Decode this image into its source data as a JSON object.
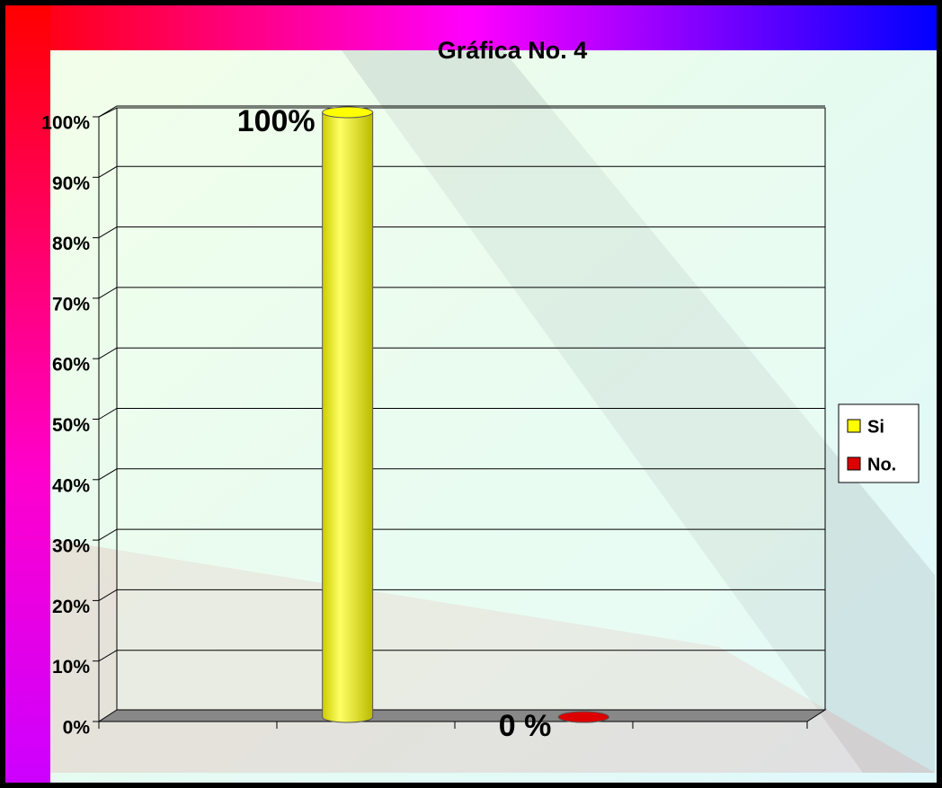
{
  "chart_data": {
    "type": "bar3d",
    "title": "Gráfica No. 4",
    "categories": [
      null
    ],
    "series": [
      {
        "name": "Si",
        "color": "#ffff00",
        "values": [
          100
        ],
        "value_labels": [
          "100%"
        ]
      },
      {
        "name": "No.",
        "color": "#dd0000",
        "values": [
          0
        ],
        "value_labels": [
          "0 %"
        ]
      }
    ],
    "ylim": [
      0,
      100
    ],
    "yticks": [
      {
        "value": 0,
        "label": "0%"
      },
      {
        "value": 10,
        "label": "10%"
      },
      {
        "value": 20,
        "label": "20%"
      },
      {
        "value": 30,
        "label": "30%"
      },
      {
        "value": 40,
        "label": "40%"
      },
      {
        "value": 50,
        "label": "50%"
      },
      {
        "value": 60,
        "label": "60%"
      },
      {
        "value": 70,
        "label": "70%"
      },
      {
        "value": 80,
        "label": "80%"
      },
      {
        "value": 90,
        "label": "90%"
      },
      {
        "value": 100,
        "label": "100%"
      }
    ],
    "grid": true,
    "legend": "right"
  }
}
